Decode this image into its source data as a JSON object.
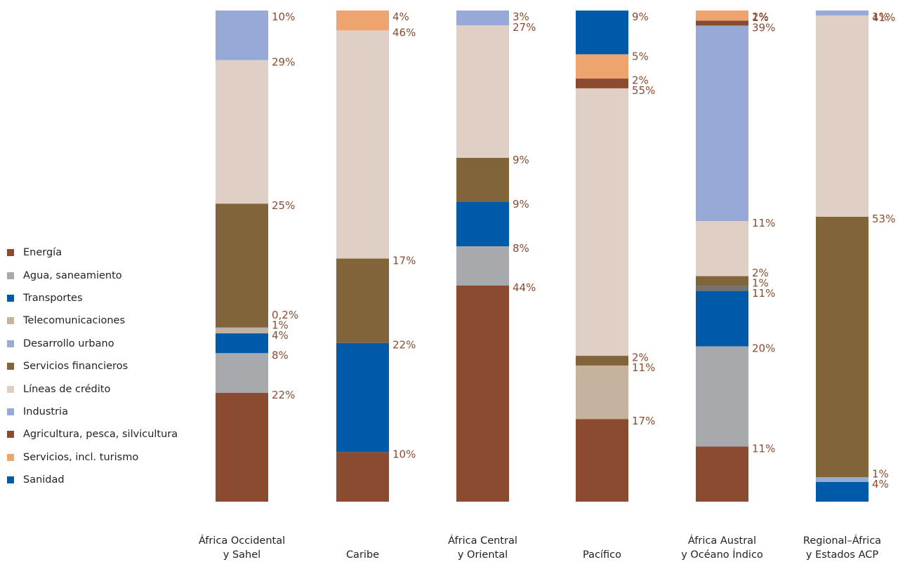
{
  "chart_data": {
    "type": "bar",
    "stacked": true,
    "percent_stacked": true,
    "grid": false,
    "legend_position": "left",
    "title": "",
    "xlabel": "",
    "ylabel": "",
    "categories": [
      [
        "África Occidental",
        "y Sahel"
      ],
      [
        "Caribe"
      ],
      [
        "África Central",
        "y Oriental"
      ],
      [
        "Pacífico"
      ],
      [
        "África Austral",
        "y Océano Índico"
      ],
      [
        "Regional–África",
        "y Estados ACP"
      ]
    ],
    "legend": [
      {
        "name": "Energía",
        "color": "#8a4b30"
      },
      {
        "name": "Agua, saneamiento",
        "color": "#a8a9ac"
      },
      {
        "name": "Transportes",
        "color": "#005aa9"
      },
      {
        "name": "Telecomunicaciones",
        "color": "#c5b39e"
      },
      {
        "name": "Desarrollo urbano",
        "color": "#96a9d7"
      },
      {
        "name": "Servicios financieros",
        "color": "#82643b"
      },
      {
        "name": "Líneas de crédito",
        "color": "#dfcfc4"
      },
      {
        "name": "Industria",
        "color": "#96a9d7"
      },
      {
        "name": "Agricultura, pesca, silvicultura",
        "color": "#8a4b30"
      },
      {
        "name": "Servicios, incl. turismo",
        "color": "#eea46e"
      },
      {
        "name": "Sanidad",
        "color": "#005aa9"
      }
    ],
    "bars": [
      {
        "category": "África Occidental y Sahel",
        "segments": [
          {
            "series": "Energía",
            "value": 22,
            "label": "22%"
          },
          {
            "series": "Agua, saneamiento",
            "value": 8,
            "label": "8%"
          },
          {
            "series": "Transportes",
            "value": 4,
            "label": "4%"
          },
          {
            "series": "Telecomunicaciones",
            "value": 1,
            "label": "1%"
          },
          {
            "series": "Desarrollo urbano",
            "value": 0.2,
            "label": "0,2%"
          },
          {
            "series": "Servicios financieros",
            "value": 25,
            "label": "25%"
          },
          {
            "series": "Líneas de crédito",
            "value": 29,
            "label": "29%"
          },
          {
            "series": "Industria",
            "value": 10,
            "label": "10%"
          }
        ]
      },
      {
        "category": "Caribe",
        "segments": [
          {
            "series": "Energía",
            "value": 10,
            "label": "10%"
          },
          {
            "series": "Transportes",
            "value": 22,
            "label": "22%"
          },
          {
            "series": "Servicios financieros",
            "value": 17,
            "label": "17%"
          },
          {
            "series": "Líneas de crédito",
            "value": 46,
            "label": "46%"
          },
          {
            "series": "Servicios, incl. turismo",
            "value": 4,
            "label": "4%"
          }
        ]
      },
      {
        "category": "África Central y Oriental",
        "segments": [
          {
            "series": "Energía",
            "value": 44,
            "label": "44%"
          },
          {
            "series": "Agua, saneamiento",
            "value": 8,
            "label": "8%"
          },
          {
            "series": "Transportes",
            "value": 9,
            "label": "9%"
          },
          {
            "series": "Servicios financieros",
            "value": 9,
            "label": "9%"
          },
          {
            "series": "Líneas de crédito",
            "value": 27,
            "label": "27%"
          },
          {
            "series": "Industria",
            "value": 3,
            "label": "3%"
          }
        ]
      },
      {
        "category": "Pacífico",
        "segments": [
          {
            "series": "Energía",
            "value": 17,
            "label": "17%"
          },
          {
            "series": "Telecomunicaciones",
            "value": 11,
            "label": "11%"
          },
          {
            "series": "Servicios financieros",
            "value": 2,
            "label": "2%"
          },
          {
            "series": "Líneas de crédito",
            "value": 55,
            "label": "55%"
          },
          {
            "series": "Agricultura, pesca, silvicultura",
            "value": 2,
            "label": "2%"
          },
          {
            "series": "Servicios, incl. turismo",
            "value": 5,
            "label": "5%"
          },
          {
            "series": "Sanidad",
            "value": 9,
            "label": "9%"
          }
        ]
      },
      {
        "category": "África Austral y Océano Índico",
        "segments": [
          {
            "series": "Energía",
            "value": 11,
            "label": "11%"
          },
          {
            "series": "Agua, saneamiento",
            "value": 20,
            "label": "20%"
          },
          {
            "series": "Transportes",
            "value": 11,
            "label": "11%"
          },
          {
            "series": "Desarrollo urbano",
            "value": 1,
            "label": "1%",
            "color": "#6f7278"
          },
          {
            "series": "Servicios financieros",
            "value": 2,
            "label": "2%"
          },
          {
            "series": "Líneas de crédito",
            "value": 11,
            "label": "11%"
          },
          {
            "series": "Industria",
            "value": 39,
            "label": "39%"
          },
          {
            "series": "Agricultura, pesca, silvicultura",
            "value": 1,
            "label": "1%"
          },
          {
            "series": "Servicios, incl. turismo",
            "value": 2,
            "label": "2%"
          }
        ]
      },
      {
        "category": "Regional–África y Estados ACP",
        "segments": [
          {
            "series": "Transportes",
            "value": 4,
            "label": "4%"
          },
          {
            "series": "Desarrollo urbano",
            "value": 1,
            "label": "1%"
          },
          {
            "series": "Servicios financieros",
            "value": 53,
            "label": "53%"
          },
          {
            "series": "Líneas de crédito",
            "value": 41,
            "label": "41%"
          },
          {
            "series": "Industria",
            "value": 1,
            "label": "1%"
          }
        ]
      }
    ]
  }
}
